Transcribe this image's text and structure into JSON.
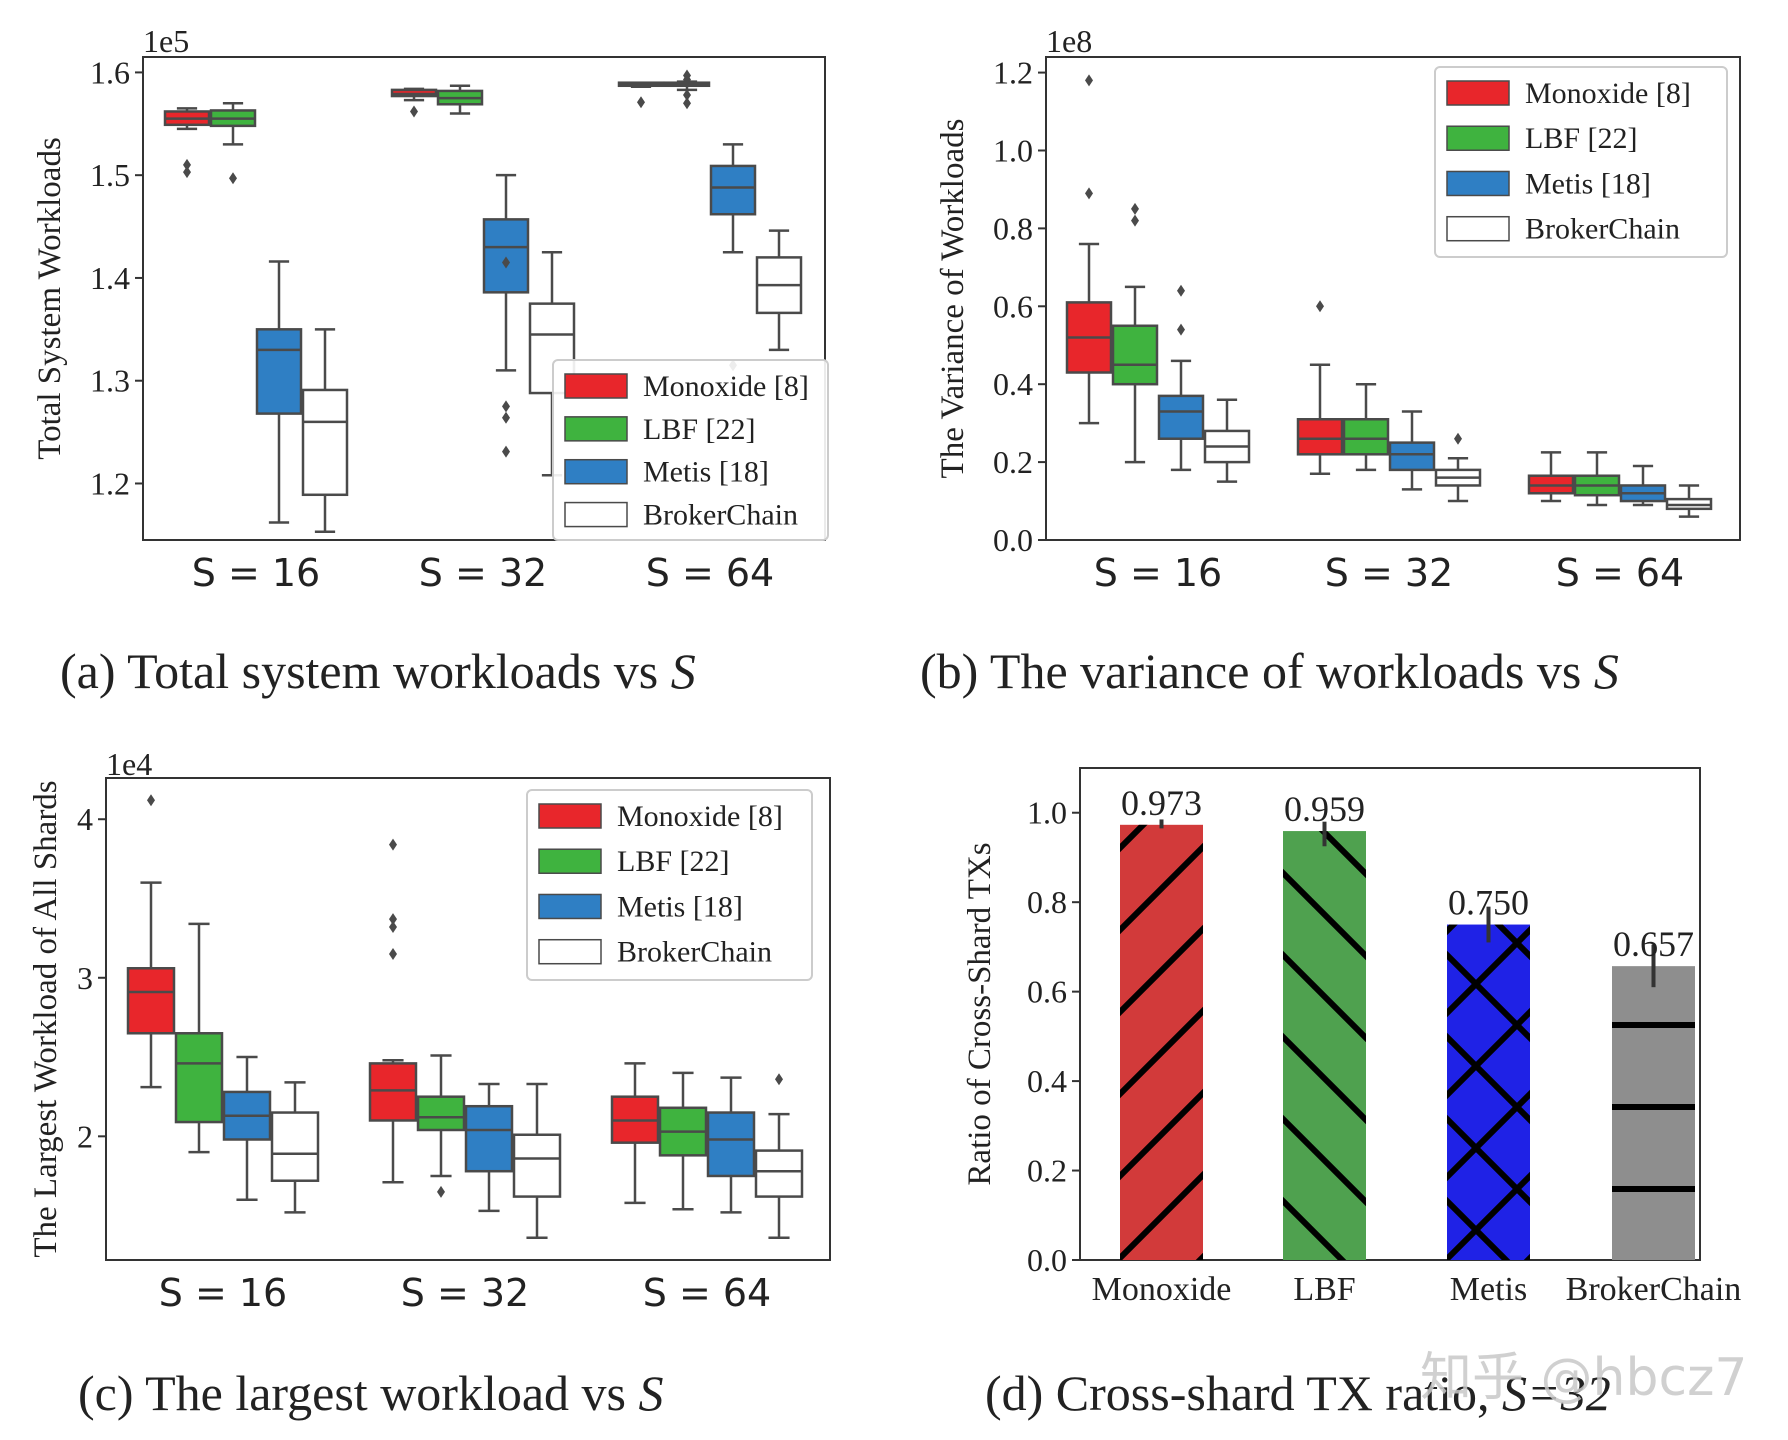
{
  "colors": {
    "Monoxide": "#e8262b",
    "LBF": "#3fb33f",
    "Metis": "#2f7fc4",
    "BrokerChain": "#ffffff",
    "bar_monoxide": "#d23a3a",
    "bar_lbf": "#4fa14f",
    "bar_metis": "#1f22e6",
    "bar_broker": "#8e8e8e",
    "watermark": "#c8c8c8"
  },
  "watermark": "知乎 @hbcz7",
  "chart_data": [
    {
      "id": "a",
      "type": "box",
      "caption_prefix": "(a) Total system workloads vs ",
      "caption_var": "S",
      "ylabel": "Total System Workloads",
      "offset_text": "1e5",
      "ylim": [
        1.145,
        1.615
      ],
      "yticks": [
        1.2,
        1.3,
        1.4,
        1.5,
        1.6
      ],
      "ytick_labels": [
        "1.2",
        "1.3",
        "1.4",
        "1.5",
        "1.6"
      ],
      "categories": [
        "S = 16",
        "S = 32",
        "S = 64"
      ],
      "legend": [
        "Monoxide [8]",
        "LBF [22]",
        "Metis [18]",
        "BrokerChain"
      ],
      "legend_position": "lower-right",
      "groups": [
        [
          {
            "name": "Monoxide",
            "whislo": 1.545,
            "q1": 1.549,
            "med": 1.555,
            "q3": 1.562,
            "whishi": 1.565,
            "fliers": [
              1.51,
              1.503
            ]
          },
          {
            "name": "LBF",
            "whislo": 1.53,
            "q1": 1.548,
            "med": 1.555,
            "q3": 1.563,
            "whishi": 1.57,
            "fliers": [
              1.497
            ]
          },
          {
            "name": "Metis",
            "whislo": 1.162,
            "q1": 1.268,
            "med": 1.33,
            "q3": 1.35,
            "whishi": 1.416,
            "fliers": []
          },
          {
            "name": "BrokerChain",
            "whislo": 1.153,
            "q1": 1.189,
            "med": 1.26,
            "q3": 1.291,
            "whishi": 1.35,
            "fliers": []
          }
        ],
        [
          {
            "name": "Monoxide",
            "whislo": 1.573,
            "q1": 1.577,
            "med": 1.579,
            "q3": 1.583,
            "whishi": 1.584,
            "fliers": [
              1.562
            ]
          },
          {
            "name": "LBF",
            "whislo": 1.56,
            "q1": 1.569,
            "med": 1.575,
            "q3": 1.582,
            "whishi": 1.587,
            "fliers": []
          },
          {
            "name": "Metis",
            "whislo": 1.31,
            "q1": 1.386,
            "med": 1.43,
            "q3": 1.457,
            "whishi": 1.5,
            "fliers": [
              1.415,
              1.275,
              1.264,
              1.231
            ]
          },
          {
            "name": "BrokerChain",
            "whislo": 1.208,
            "q1": 1.288,
            "med": 1.345,
            "q3": 1.375,
            "whishi": 1.425,
            "fliers": []
          }
        ],
        [
          {
            "name": "Monoxide",
            "whislo": 1.586,
            "q1": 1.587,
            "med": 1.588,
            "q3": 1.59,
            "whishi": 1.59,
            "fliers": [
              1.571
            ]
          },
          {
            "name": "LBF",
            "whislo": 1.583,
            "q1": 1.587,
            "med": 1.589,
            "q3": 1.59,
            "whishi": 1.591,
            "fliers": [
              1.597,
              1.593,
              1.578,
              1.57
            ]
          },
          {
            "name": "Metis",
            "whislo": 1.425,
            "q1": 1.462,
            "med": 1.488,
            "q3": 1.509,
            "whishi": 1.53,
            "fliers": [
              1.315
            ]
          },
          {
            "name": "BrokerChain",
            "whislo": 1.33,
            "q1": 1.366,
            "med": 1.393,
            "q3": 1.42,
            "whishi": 1.446,
            "fliers": []
          }
        ]
      ]
    },
    {
      "id": "b",
      "type": "box",
      "caption_prefix": "(b) The variance of workloads vs ",
      "caption_var": "S",
      "ylabel": "The Variance of Workloads",
      "offset_text": "1e8",
      "ylim": [
        0,
        1.24
      ],
      "yticks": [
        0,
        0.2,
        0.4,
        0.6,
        0.8,
        1.0,
        1.2
      ],
      "ytick_labels": [
        "0.0",
        "0.2",
        "0.4",
        "0.6",
        "0.8",
        "1.0",
        "1.2"
      ],
      "categories": [
        "S = 16",
        "S = 32",
        "S = 64"
      ],
      "legend": [
        "Monoxide [8]",
        "LBF [22]",
        "Metis [18]",
        "BrokerChain"
      ],
      "legend_position": "upper-right",
      "groups": [
        [
          {
            "name": "Monoxide",
            "whislo": 0.3,
            "q1": 0.43,
            "med": 0.52,
            "q3": 0.61,
            "whishi": 0.76,
            "fliers": [
              1.18,
              0.89
            ]
          },
          {
            "name": "LBF",
            "whislo": 0.2,
            "q1": 0.4,
            "med": 0.45,
            "q3": 0.55,
            "whishi": 0.65,
            "fliers": [
              0.85,
              0.82
            ]
          },
          {
            "name": "Metis",
            "whislo": 0.18,
            "q1": 0.26,
            "med": 0.33,
            "q3": 0.37,
            "whishi": 0.46,
            "fliers": [
              0.64,
              0.54
            ]
          },
          {
            "name": "BrokerChain",
            "whislo": 0.15,
            "q1": 0.2,
            "med": 0.24,
            "q3": 0.28,
            "whishi": 0.36,
            "fliers": []
          }
        ],
        [
          {
            "name": "Monoxide",
            "whislo": 0.17,
            "q1": 0.22,
            "med": 0.26,
            "q3": 0.31,
            "whishi": 0.45,
            "fliers": [
              0.6
            ]
          },
          {
            "name": "LBF",
            "whislo": 0.18,
            "q1": 0.22,
            "med": 0.26,
            "q3": 0.31,
            "whishi": 0.4,
            "fliers": []
          },
          {
            "name": "Metis",
            "whislo": 0.13,
            "q1": 0.18,
            "med": 0.22,
            "q3": 0.25,
            "whishi": 0.33,
            "fliers": []
          },
          {
            "name": "BrokerChain",
            "whislo": 0.1,
            "q1": 0.14,
            "med": 0.16,
            "q3": 0.18,
            "whishi": 0.21,
            "fliers": [
              0.26
            ]
          }
        ],
        [
          {
            "name": "Monoxide",
            "whislo": 0.1,
            "q1": 0.12,
            "med": 0.14,
            "q3": 0.165,
            "whishi": 0.225,
            "fliers": []
          },
          {
            "name": "LBF",
            "whislo": 0.09,
            "q1": 0.115,
            "med": 0.14,
            "q3": 0.165,
            "whishi": 0.225,
            "fliers": []
          },
          {
            "name": "Metis",
            "whislo": 0.09,
            "q1": 0.1,
            "med": 0.12,
            "q3": 0.14,
            "whishi": 0.19,
            "fliers": []
          },
          {
            "name": "BrokerChain",
            "whislo": 0.06,
            "q1": 0.08,
            "med": 0.09,
            "q3": 0.105,
            "whishi": 0.14,
            "fliers": []
          }
        ]
      ]
    },
    {
      "id": "c",
      "type": "box",
      "caption_prefix": "(c) The largest workload vs ",
      "caption_var": "S",
      "ylabel": "The Largest Workload of All Shards",
      "offset_text": "1e4",
      "ylim": [
        1.22,
        4.26
      ],
      "yticks": [
        2,
        3,
        4
      ],
      "ytick_labels": [
        "2",
        "3",
        "4"
      ],
      "categories": [
        "S = 16",
        "S = 32",
        "S = 64"
      ],
      "legend": [
        "Monoxide [8]",
        "LBF [22]",
        "Metis [18]",
        "BrokerChain"
      ],
      "legend_position": "upper-right",
      "groups": [
        [
          {
            "name": "Monoxide",
            "whislo": 2.31,
            "q1": 2.65,
            "med": 2.91,
            "q3": 3.06,
            "whishi": 3.6,
            "fliers": [
              4.12
            ]
          },
          {
            "name": "LBF",
            "whislo": 1.9,
            "q1": 2.09,
            "med": 2.46,
            "q3": 2.65,
            "whishi": 3.34,
            "fliers": []
          },
          {
            "name": "Metis",
            "whislo": 1.6,
            "q1": 1.98,
            "med": 2.13,
            "q3": 2.28,
            "whishi": 2.5,
            "fliers": []
          },
          {
            "name": "BrokerChain",
            "whislo": 1.52,
            "q1": 1.72,
            "med": 1.89,
            "q3": 2.15,
            "whishi": 2.34,
            "fliers": []
          }
        ],
        [
          {
            "name": "Monoxide",
            "whislo": 1.71,
            "q1": 2.1,
            "med": 2.29,
            "q3": 2.46,
            "whishi": 2.48,
            "fliers": [
              3.84,
              3.37,
              3.32,
              3.15
            ]
          },
          {
            "name": "LBF",
            "whislo": 1.75,
            "q1": 2.04,
            "med": 2.12,
            "q3": 2.25,
            "whishi": 2.51,
            "fliers": [
              1.65
            ]
          },
          {
            "name": "Metis",
            "whislo": 1.53,
            "q1": 1.78,
            "med": 2.04,
            "q3": 2.19,
            "whishi": 2.33,
            "fliers": []
          },
          {
            "name": "BrokerChain",
            "whislo": 1.36,
            "q1": 1.62,
            "med": 1.86,
            "q3": 2.01,
            "whishi": 2.33,
            "fliers": []
          }
        ],
        [
          {
            "name": "Monoxide",
            "whislo": 1.58,
            "q1": 1.96,
            "med": 2.1,
            "q3": 2.25,
            "whishi": 2.46,
            "fliers": []
          },
          {
            "name": "LBF",
            "whislo": 1.54,
            "q1": 1.88,
            "med": 2.03,
            "q3": 2.18,
            "whishi": 2.4,
            "fliers": []
          },
          {
            "name": "Metis",
            "whislo": 1.52,
            "q1": 1.75,
            "med": 1.98,
            "q3": 2.15,
            "whishi": 2.37,
            "fliers": []
          },
          {
            "name": "BrokerChain",
            "whislo": 1.36,
            "q1": 1.62,
            "med": 1.78,
            "q3": 1.91,
            "whishi": 2.14,
            "fliers": [
              2.36
            ]
          }
        ]
      ]
    },
    {
      "id": "d",
      "type": "bar",
      "caption_prefix": "(d) Cross-shard TX ratio, ",
      "caption_var": "S=32",
      "ylabel": "Ratio of Cross-Shard TXs",
      "ylim": [
        0,
        1.1
      ],
      "yticks": [
        0,
        0.2,
        0.4,
        0.6,
        0.8,
        1.0
      ],
      "ytick_labels": [
        "0.0",
        "0.2",
        "0.4",
        "0.6",
        "0.8",
        "1.0"
      ],
      "categories": [
        "Monoxide",
        "LBF",
        "Metis",
        "BrokerChain"
      ],
      "values": [
        0.973,
        0.959,
        0.75,
        0.657
      ],
      "value_labels": [
        "0.973",
        "0.959",
        "0.750",
        "0.657"
      ],
      "err": [
        [
          0.965,
          0.985
        ],
        [
          0.925,
          0.98
        ],
        [
          0.71,
          0.79
        ],
        [
          0.61,
          0.705
        ]
      ],
      "hatches": [
        "/",
        "\\",
        "x",
        "-"
      ]
    }
  ]
}
